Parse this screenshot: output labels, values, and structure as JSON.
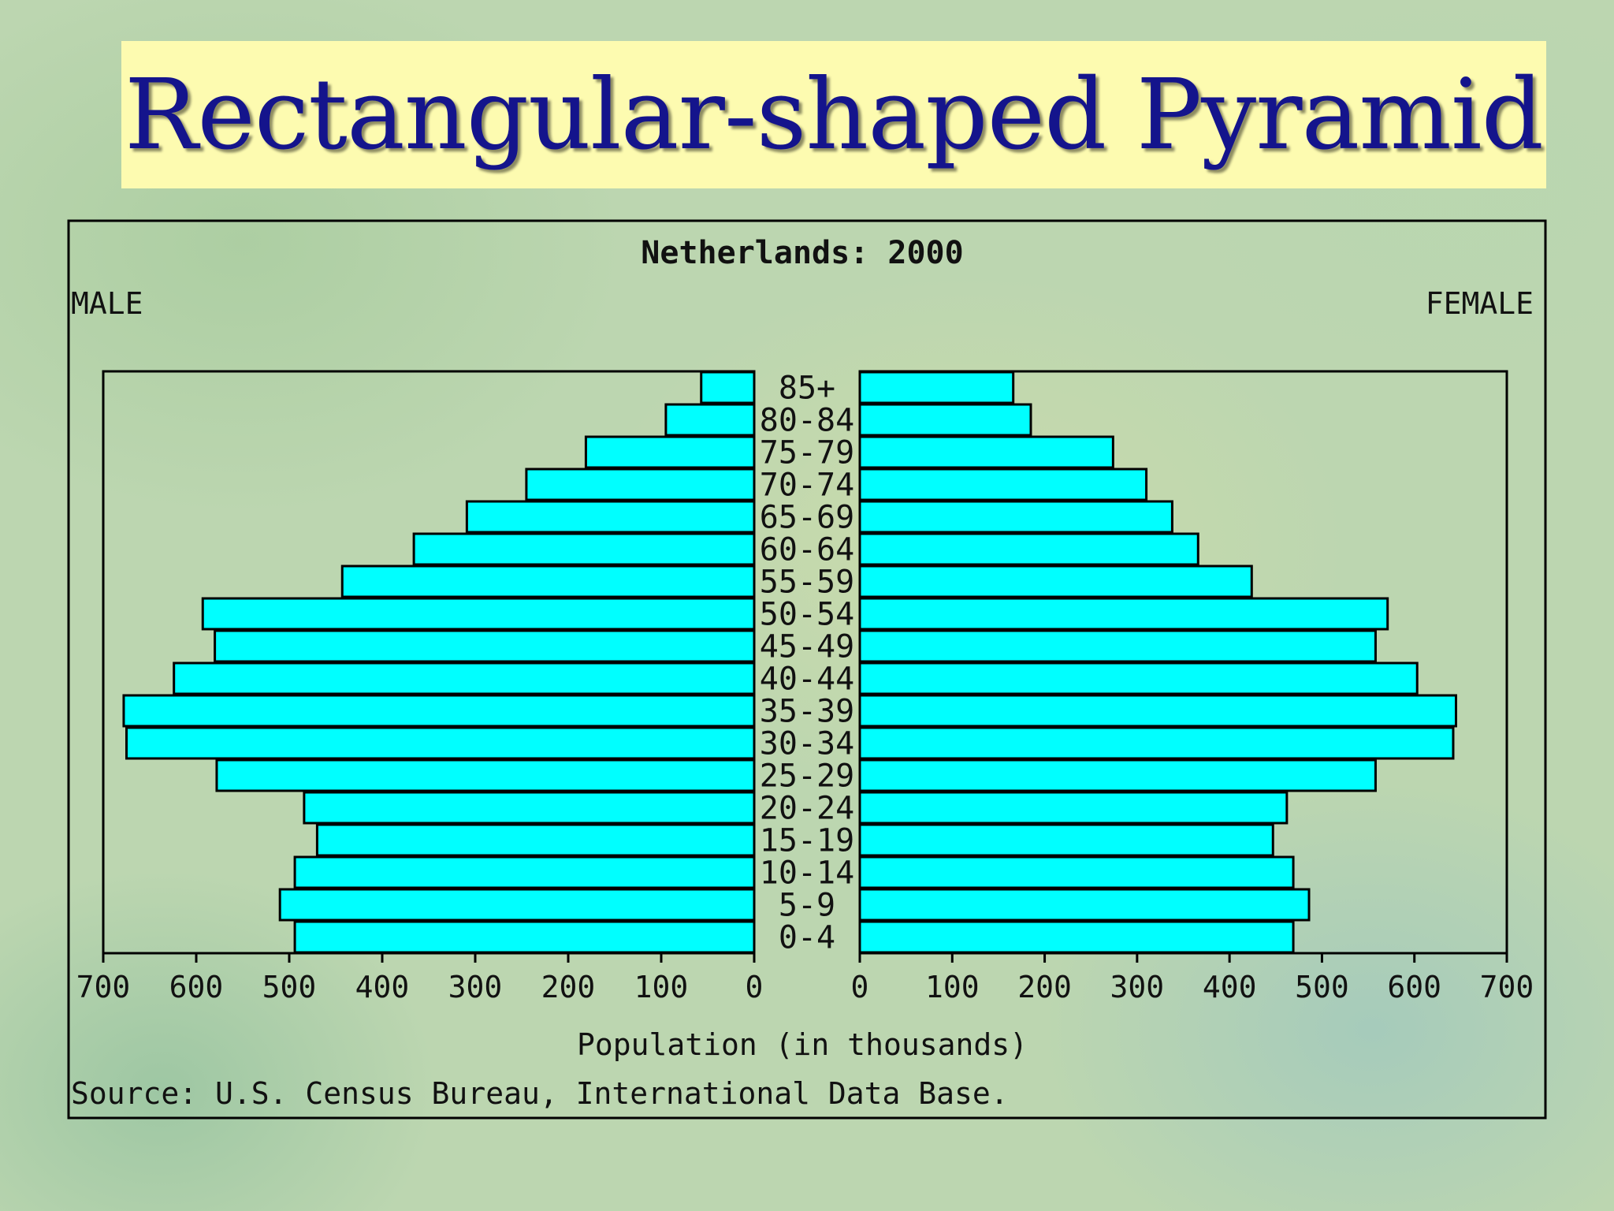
{
  "slide": {
    "title": "Rectangular-shaped Pyramid"
  },
  "chart_data": {
    "type": "bar",
    "orientation": "horizontal-population-pyramid",
    "title": "Netherlands: 2000",
    "left_label": "MALE",
    "right_label": "FEMALE",
    "xlabel": "Population (in thousands)",
    "source": "Source: U.S. Census Bureau, International Data Base.",
    "xlim": [
      0,
      700
    ],
    "ticks": [
      0,
      100,
      200,
      300,
      400,
      500,
      600,
      700
    ],
    "categories": [
      "85+",
      "80-84",
      "75-79",
      "70-74",
      "65-69",
      "60-64",
      "55-59",
      "50-54",
      "45-49",
      "40-44",
      "35-39",
      "30-34",
      "25-29",
      "20-24",
      "15-19",
      "10-14",
      "5-9",
      "0-4"
    ],
    "series": [
      {
        "name": "MALE",
        "values": [
          57,
          95,
          181,
          245,
          309,
          366,
          443,
          593,
          580,
          624,
          678,
          675,
          578,
          484,
          470,
          494,
          510,
          494
        ]
      },
      {
        "name": "FEMALE",
        "values": [
          166,
          185,
          274,
          310,
          338,
          366,
          424,
          571,
          558,
          603,
          645,
          642,
          558,
          462,
          447,
          469,
          486,
          469
        ]
      }
    ],
    "bar_color": "#00ffff",
    "grid": false
  }
}
